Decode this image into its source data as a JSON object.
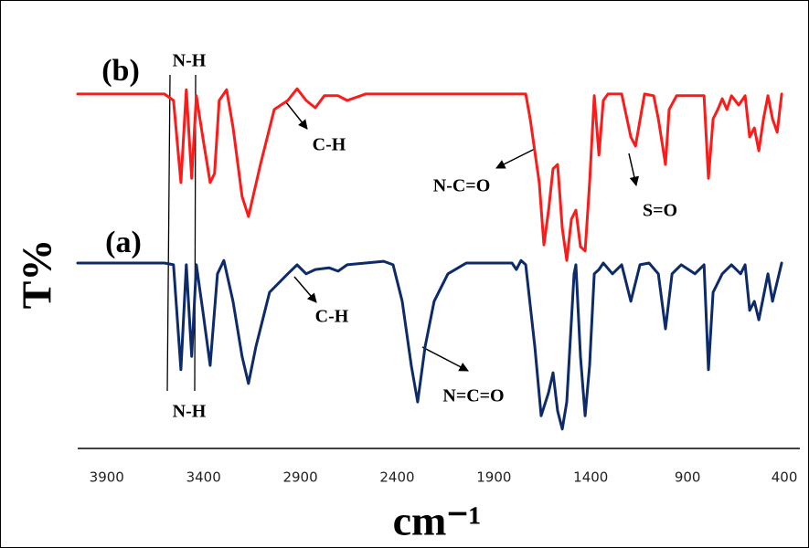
{
  "chart_data": {
    "type": "line",
    "xlabel": "cm⁻¹",
    "ylabel": "T%",
    "xlim": [
      4050,
      320
    ],
    "xticks": [
      3900,
      3400,
      2900,
      2400,
      1900,
      1400,
      900,
      400
    ],
    "ylim": [
      0,
      100
    ],
    "series": [
      {
        "name": "(b)",
        "color": "#ff1a1a",
        "x": [
          4050,
          3602,
          3555,
          3517,
          3489,
          3461,
          3437,
          3404,
          3366,
          3343,
          3319,
          3281,
          3248,
          3201,
          3168,
          3106,
          3035,
          2965,
          2917,
          2870,
          2823,
          2776,
          2705,
          2658,
          2563,
          1736,
          1713,
          1666,
          1642,
          1618,
          1595,
          1571,
          1547,
          1524,
          1500,
          1477,
          1453,
          1429,
          1406,
          1382,
          1358,
          1335,
          1311,
          1240,
          1193,
          1169,
          1122,
          1075,
          1051,
          1014,
          995,
          957,
          815,
          792,
          768,
          744,
          721,
          697,
          673,
          636,
          603,
          579,
          555,
          532,
          508,
          485,
          461,
          437,
          414
        ],
        "values": [
          82.4,
          82.4,
          80.9,
          61.8,
          83.4,
          62.8,
          82.0,
          72.4,
          61.8,
          63.9,
          80.9,
          83.4,
          74.7,
          58.6,
          53.9,
          66.0,
          78.8,
          80.9,
          83.6,
          80.9,
          79.2,
          82.0,
          82.0,
          80.9,
          82.4,
          82.4,
          76.6,
          61.8,
          47.3,
          55.4,
          65.0,
          66.0,
          51.2,
          43.7,
          53.3,
          55.4,
          46.9,
          45.9,
          61.8,
          82.0,
          68.2,
          80.9,
          82.4,
          82.4,
          72.4,
          70.3,
          82.4,
          82.0,
          76.6,
          66.0,
          78.8,
          82.0,
          82.0,
          62.8,
          76.6,
          78.8,
          81.3,
          78.8,
          82.0,
          79.8,
          82.0,
          72.4,
          74.5,
          69.2,
          76.6,
          82.0,
          76.6,
          73.5,
          82.4
        ]
      },
      {
        "name": "(a)",
        "color": "#0d2a6b",
        "x": [
          4050,
          3602,
          3555,
          3517,
          3489,
          3461,
          3437,
          3404,
          3366,
          3328,
          3295,
          3248,
          3201,
          3168,
          3130,
          3059,
          2965,
          2917,
          2870,
          2823,
          2752,
          2705,
          2658,
          2469,
          2421,
          2374,
          2327,
          2294,
          2256,
          2209,
          2138,
          2043,
          1807,
          1784,
          1760,
          1736,
          1689,
          1656,
          1618,
          1595,
          1571,
          1547,
          1524,
          1486,
          1477,
          1453,
          1429,
          1406,
          1382,
          1358,
          1335,
          1288,
          1240,
          1193,
          1146,
          1099,
          1051,
          1014,
          980,
          933,
          862,
          815,
          792,
          768,
          721,
          673,
          626,
          603,
          579,
          555,
          532,
          485,
          461,
          414
        ],
        "values": [
          43.1,
          43.1,
          42.7,
          18.3,
          42.7,
          21.4,
          42.7,
          32.1,
          19.3,
          40.6,
          43.7,
          34.2,
          21.4,
          15.1,
          23.6,
          36.3,
          40.6,
          42.7,
          40.6,
          41.6,
          42.0,
          41.2,
          42.7,
          43.5,
          42.7,
          34.2,
          19.3,
          10.8,
          23.6,
          34.2,
          40.6,
          43.1,
          43.1,
          41.6,
          43.7,
          42.7,
          23.6,
          7.6,
          13.0,
          17.6,
          8.7,
          4.5,
          10.8,
          40.6,
          42.7,
          21.4,
          7.6,
          19.3,
          40.6,
          41.6,
          43.1,
          40.6,
          42.7,
          34.2,
          42.7,
          43.1,
          40.6,
          27.8,
          40.6,
          42.7,
          40.6,
          42.7,
          18.3,
          36.3,
          40.6,
          42.7,
          40.6,
          42.7,
          32.1,
          34.2,
          29.9,
          40.6,
          34.2,
          43.1
        ]
      }
    ],
    "annotations": [
      "N-H",
      "C-H",
      "N-C=O",
      "S=O",
      "C-H",
      "N=C=O",
      "N-H"
    ]
  }
}
